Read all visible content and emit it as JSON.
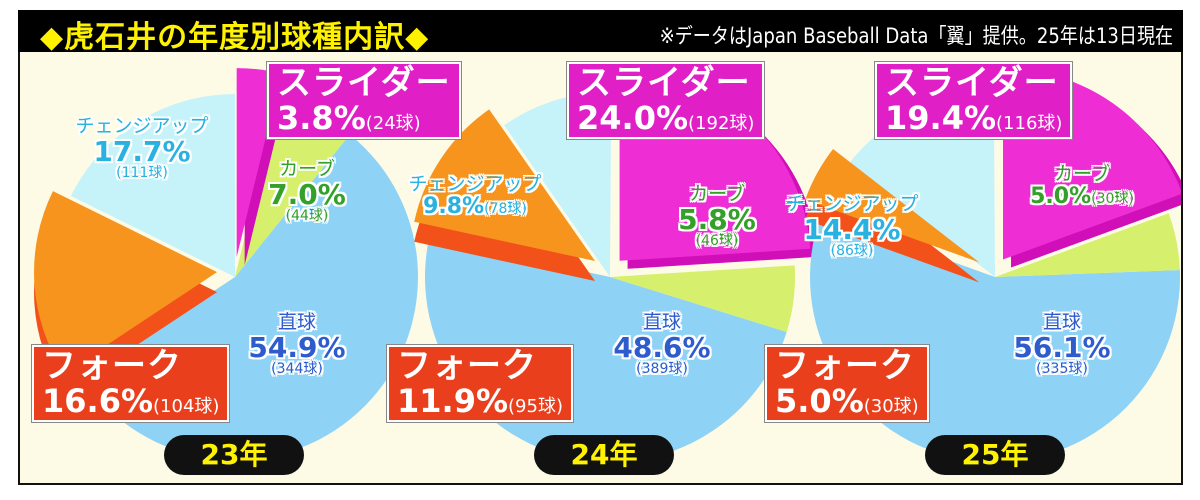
{
  "header": {
    "logo": "虎",
    "title": "◆虎石井の年度別球種内訳◆",
    "note": "※データはJapan Baseball Data「翼」提供。25年は13日現在"
  },
  "colors": {
    "slider": "#ee2ed4",
    "curve": "#d6f06e",
    "straight": "#8ed2f5",
    "fork": "#f7941d",
    "fork_side": "#f2521a",
    "changeup": "#c6f2fa",
    "slider_box": "#e01fc6",
    "fork_box": "#ea3f1c",
    "changeup_text": "#29b2e0",
    "curve_text": "#34a02a",
    "straight_text": "#2f5ccc"
  },
  "chart_data": [
    {
      "type": "pie",
      "title": "23年",
      "year_num": "23",
      "year_unit": "年",
      "slices": [
        {
          "key": "slider",
          "name": "スライダー",
          "percent": 3.8,
          "pct_label": "3.8%",
          "pitches": 24,
          "count_label": "(24球)"
        },
        {
          "key": "curve",
          "name": "カーブ",
          "percent": 7.0,
          "pct_label": "7.0%",
          "pitches": 44,
          "count_label": "(44球)"
        },
        {
          "key": "straight",
          "name": "直球",
          "percent": 54.9,
          "pct_label": "54.9%",
          "pitches": 344,
          "count_label": "(344球)"
        },
        {
          "key": "fork",
          "name": "フォーク",
          "percent": 16.6,
          "pct_label": "16.6%",
          "pitches": 104,
          "count_label": "(104球)"
        },
        {
          "key": "changeup",
          "name": "チェンジアップ",
          "percent": 17.7,
          "pct_label": "17.7%",
          "pitches": 111,
          "count_label": "(111球)"
        }
      ]
    },
    {
      "type": "pie",
      "title": "24年",
      "year_num": "24",
      "year_unit": "年",
      "slices": [
        {
          "key": "slider",
          "name": "スライダー",
          "percent": 24.0,
          "pct_label": "24.0%",
          "pitches": 192,
          "count_label": "(192球)"
        },
        {
          "key": "curve",
          "name": "カーブ",
          "percent": 5.8,
          "pct_label": "5.8%",
          "pitches": 46,
          "count_label": "(46球)"
        },
        {
          "key": "straight",
          "name": "直球",
          "percent": 48.6,
          "pct_label": "48.6%",
          "pitches": 389,
          "count_label": "(389球)"
        },
        {
          "key": "fork",
          "name": "フォーク",
          "percent": 11.9,
          "pct_label": "11.9%",
          "pitches": 95,
          "count_label": "(95球)"
        },
        {
          "key": "changeup",
          "name": "チェンジアップ",
          "percent": 9.8,
          "pct_label": "9.8%",
          "pitches": 78,
          "count_label": "(78球)"
        }
      ]
    },
    {
      "type": "pie",
      "title": "25年",
      "year_num": "25",
      "year_unit": "年",
      "slices": [
        {
          "key": "slider",
          "name": "スライダー",
          "percent": 19.4,
          "pct_label": "19.4%",
          "pitches": 116,
          "count_label": "(116球)"
        },
        {
          "key": "curve",
          "name": "カーブ",
          "percent": 5.0,
          "pct_label": "5.0%",
          "pitches": 30,
          "count_label": "(30球)"
        },
        {
          "key": "straight",
          "name": "直球",
          "percent": 56.1,
          "pct_label": "56.1%",
          "pitches": 335,
          "count_label": "(335球)"
        },
        {
          "key": "fork",
          "name": "フォーク",
          "percent": 5.0,
          "pct_label": "5.0%",
          "pitches": 30,
          "count_label": "(30球)"
        },
        {
          "key": "changeup",
          "name": "チェンジアップ",
          "percent": 14.4,
          "pct_label": "14.4%",
          "pitches": 86,
          "count_label": "(86球)"
        }
      ]
    }
  ]
}
